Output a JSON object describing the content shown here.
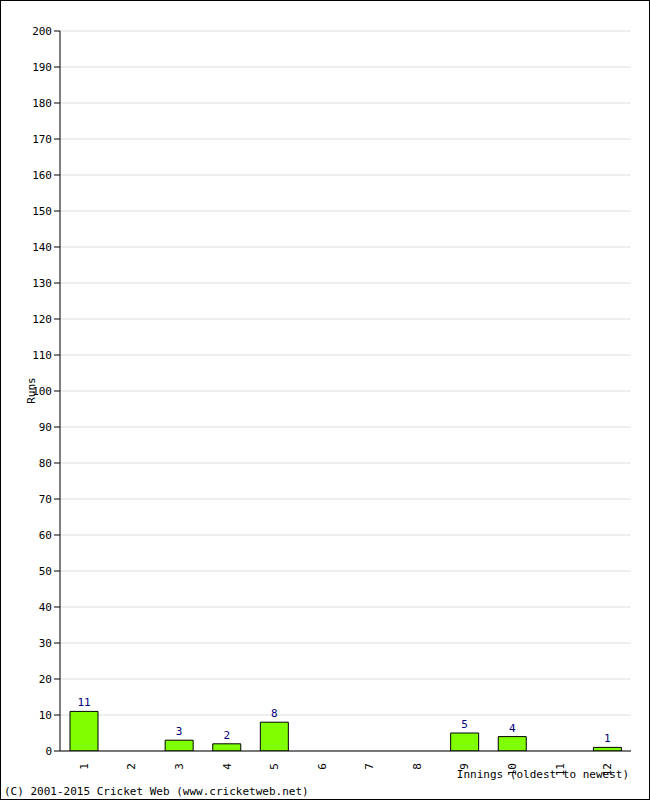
{
  "chart_data": {
    "type": "bar",
    "ylabel": "Runs",
    "xlabel": "Innings (oldest to newest)",
    "annotation": "(C) 2001-2015 Cricket Web (www.cricketweb.net)",
    "categories": [
      "1",
      "2",
      "3",
      "4",
      "5",
      "6",
      "7",
      "8",
      "9",
      "10",
      "11",
      "12"
    ],
    "values": [
      11,
      0,
      3,
      2,
      8,
      0,
      0,
      0,
      5,
      4,
      0,
      1
    ],
    "color": "#80ff00",
    "ylim": [
      0,
      200
    ],
    "yticks": [
      0,
      10,
      20,
      30,
      40,
      50,
      60,
      70,
      80,
      90,
      100,
      110,
      120,
      130,
      140,
      150,
      160,
      170,
      180,
      190,
      200
    ],
    "grid": true,
    "data_labels": true
  }
}
